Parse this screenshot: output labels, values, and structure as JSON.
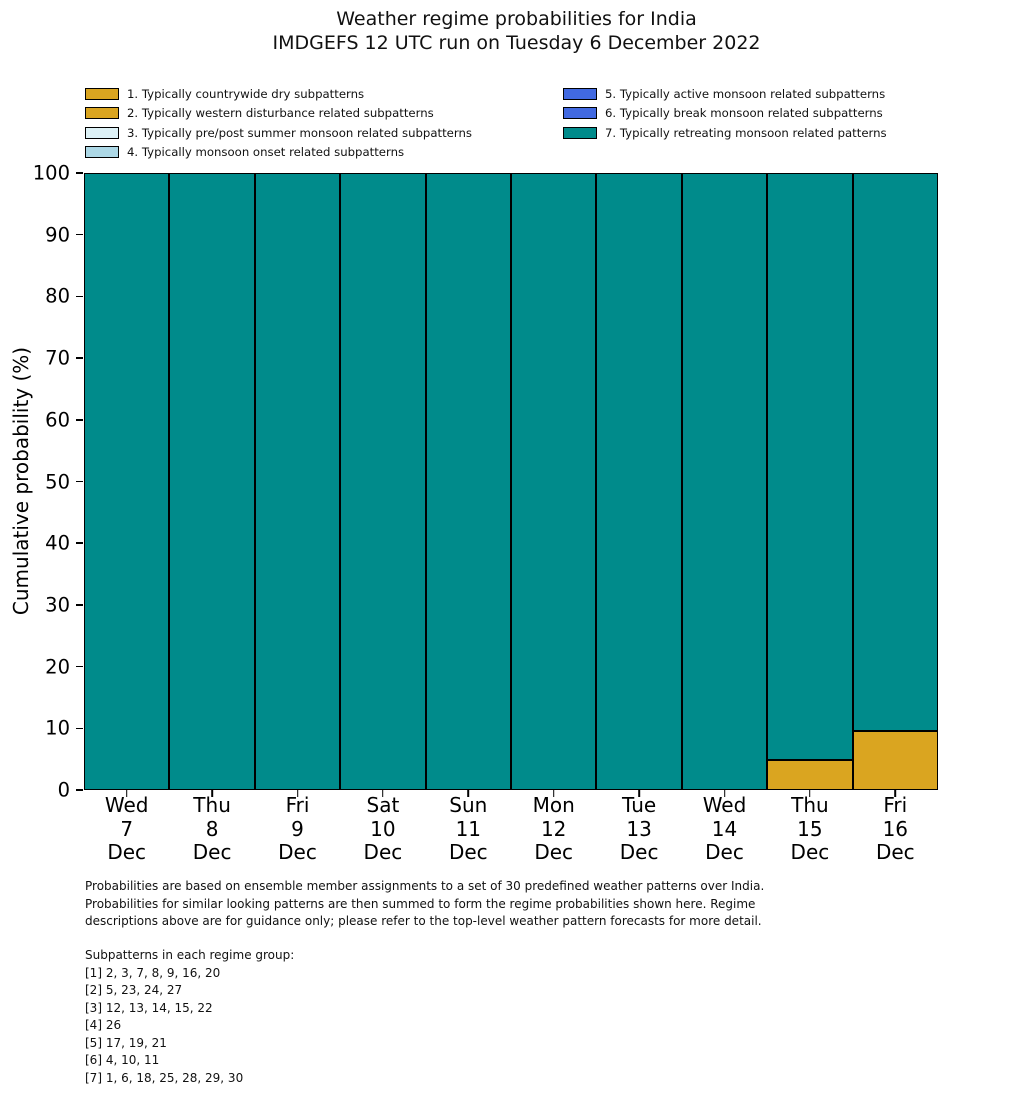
{
  "title": {
    "line1": "Weather regime probabilities for India",
    "line2": "IMDGEFS 12 UTC run on Tuesday 6 December 2022"
  },
  "chart_data": {
    "type": "bar",
    "stacked": true,
    "title": "Weather regime probabilities for India — IMDGEFS 12 UTC run on Tuesday 6 December 2022",
    "ylabel": "Cumulative probability (%)",
    "ylim": [
      0,
      100
    ],
    "ytick_step": 10,
    "grid": false,
    "legend_position": "top, two columns, no frame",
    "edge_color": "#000000",
    "categories": [
      {
        "weekday": "Wed",
        "day": "7",
        "month": "Dec"
      },
      {
        "weekday": "Thu",
        "day": "8",
        "month": "Dec"
      },
      {
        "weekday": "Fri",
        "day": "9",
        "month": "Dec"
      },
      {
        "weekday": "Sat",
        "day": "10",
        "month": "Dec"
      },
      {
        "weekday": "Sun",
        "day": "11",
        "month": "Dec"
      },
      {
        "weekday": "Mon",
        "day": "12",
        "month": "Dec"
      },
      {
        "weekday": "Tue",
        "day": "13",
        "month": "Dec"
      },
      {
        "weekday": "Wed",
        "day": "14",
        "month": "Dec"
      },
      {
        "weekday": "Thu",
        "day": "15",
        "month": "Dec"
      },
      {
        "weekday": "Fri",
        "day": "16",
        "month": "Dec"
      }
    ],
    "series": [
      {
        "name": "1. Typically countrywide dry subpatterns",
        "color": "#DAA520",
        "hatch": false,
        "values": [
          0,
          0,
          0,
          0,
          0,
          0,
          0,
          0,
          4.8,
          9.5
        ]
      },
      {
        "name": "2. Typically western disturbance related subpatterns",
        "color": "#DAA520",
        "hatch": true,
        "values": [
          0,
          0,
          0,
          0,
          0,
          0,
          0,
          0,
          0,
          0
        ]
      },
      {
        "name": "3. Typically pre/post summer monsoon related subpatterns",
        "color": "#DDF1F6",
        "hatch": false,
        "values": [
          0,
          0,
          0,
          0,
          0,
          0,
          0,
          0,
          0,
          0
        ]
      },
      {
        "name": "4. Typically monsoon onset related subpatterns",
        "color": "#ADD8E6",
        "hatch": false,
        "values": [
          0,
          0,
          0,
          0,
          0,
          0,
          0,
          0,
          0,
          0
        ]
      },
      {
        "name": "5. Typically active monsoon related subpatterns",
        "color": "#4169E1",
        "hatch": false,
        "values": [
          0,
          0,
          0,
          0,
          0,
          0,
          0,
          0,
          0,
          0
        ]
      },
      {
        "name": "6. Typically break monsoon related subpatterns",
        "color": "#4169E1",
        "hatch": true,
        "values": [
          0,
          0,
          0,
          0,
          0,
          0,
          0,
          0,
          0,
          0
        ]
      },
      {
        "name": "7. Typically retreating monsoon related patterns",
        "color": "#008B8B",
        "hatch": false,
        "values": [
          100,
          100,
          100,
          100,
          100,
          100,
          100,
          100,
          95.2,
          90.5
        ]
      }
    ]
  },
  "footnote": {
    "lines": [
      "Probabilities are based on ensemble member assignments to a set of 30 predefined weather patterns over India.",
      "Probabilities for similar looking patterns are then summed to form the regime probabilities shown here. Regime",
      "descriptions above are for guidance only; please refer to the top-level weather pattern forecasts for more detail."
    ]
  },
  "subpatterns": {
    "heading": "Subpatterns in each regime group:",
    "lines": [
      "[1] 2, 3, 7, 8, 9, 16, 20",
      "[2] 5, 23, 24, 27",
      "[3] 12, 13, 14, 15, 22",
      "[4] 26",
      "[5] 17, 19, 21",
      "[6] 4, 10, 11",
      "[7] 1, 6, 18, 25, 28, 29, 30"
    ]
  }
}
